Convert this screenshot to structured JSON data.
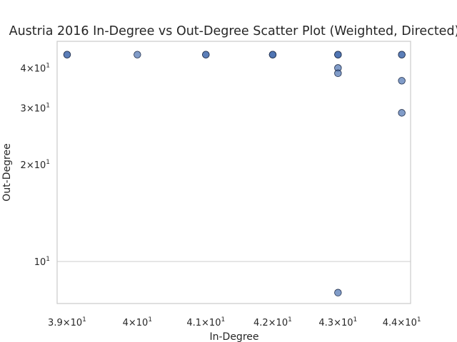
{
  "chart_data": {
    "type": "scatter",
    "title": "Austria 2016 In-Degree vs Out-Degree Scatter Plot (Weighted, Directed)",
    "xlabel": "In-Degree",
    "ylabel": "Out-Degree",
    "x_scale": "log",
    "y_scale": "log",
    "xlim": [
      38.86,
      44.14
    ],
    "ylim": [
      7.4,
      48.4
    ],
    "grid": "y-major-only",
    "point_color": "#4c72b0",
    "x_ticks": [
      {
        "value": 39,
        "base": "3.9",
        "exp": "1"
      },
      {
        "value": 40,
        "base": "4",
        "exp": "1"
      },
      {
        "value": 41,
        "base": "4.1",
        "exp": "1"
      },
      {
        "value": 42,
        "base": "4.2",
        "exp": "1"
      },
      {
        "value": 43,
        "base": "4.3",
        "exp": "1"
      },
      {
        "value": 44,
        "base": "4.4",
        "exp": "1"
      }
    ],
    "y_ticks": [
      {
        "value": 10,
        "base": "10",
        "exp": "1"
      },
      {
        "value": 20,
        "base": "2",
        "exp": "1"
      },
      {
        "value": 30,
        "base": "3",
        "exp": "1"
      },
      {
        "value": 40,
        "base": "4",
        "exp": "1"
      }
    ],
    "points": [
      {
        "x": 39,
        "y": 44
      },
      {
        "x": 39,
        "y": 44
      },
      {
        "x": 40,
        "y": 44
      },
      {
        "x": 41,
        "y": 44
      },
      {
        "x": 41,
        "y": 44
      },
      {
        "x": 42,
        "y": 44
      },
      {
        "x": 42,
        "y": 44
      },
      {
        "x": 42,
        "y": 44
      },
      {
        "x": 43,
        "y": 44
      },
      {
        "x": 43,
        "y": 44
      },
      {
        "x": 43,
        "y": 44
      },
      {
        "x": 43,
        "y": 40
      },
      {
        "x": 43,
        "y": 38.5
      },
      {
        "x": 43,
        "y": 8
      },
      {
        "x": 44,
        "y": 44
      },
      {
        "x": 44,
        "y": 44
      },
      {
        "x": 44,
        "y": 36.5
      },
      {
        "x": 44,
        "y": 29
      }
    ]
  }
}
